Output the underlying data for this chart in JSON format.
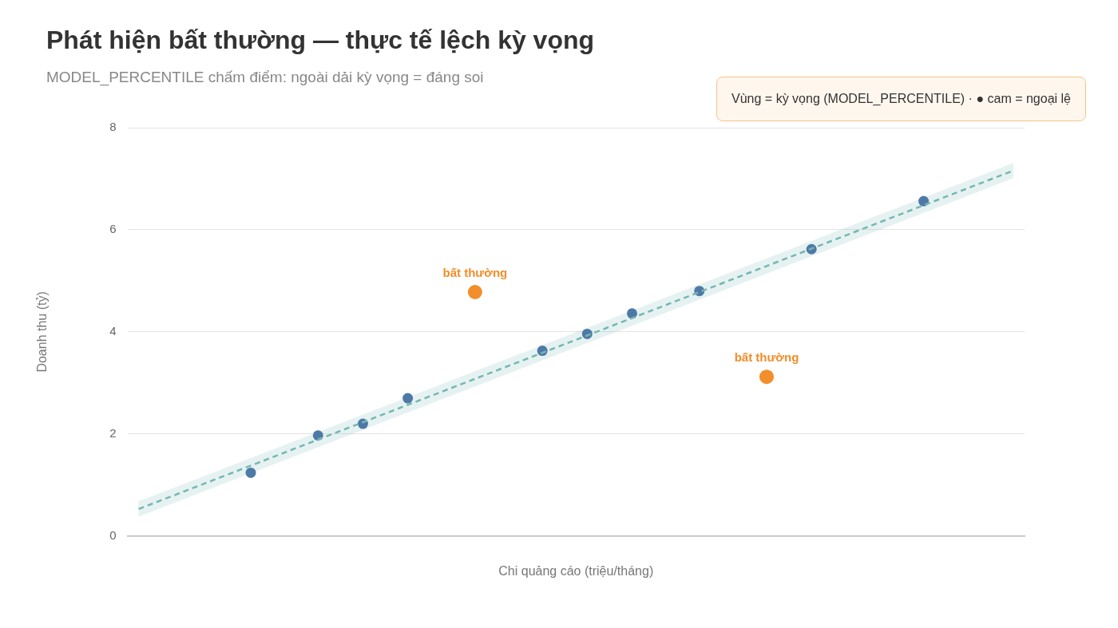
{
  "chart_data": {
    "type": "scatter",
    "title": "Phát hiện bất thường — thực tế lệch kỳ vọng",
    "subtitle": "MODEL_PERCENTILE chấm điểm: ngoài dải kỳ vọng = đáng soi",
    "xlabel": "Chi quảng cáo (triệu/tháng)",
    "ylabel": "Doanh thu (tỷ)",
    "categories": [
      null,
      null,
      null,
      null,
      null,
      null,
      null,
      null,
      null,
      null,
      null,
      null,
      null,
      null,
      null,
      null,
      null,
      null,
      null,
      null,
      null,
      null,
      null,
      null,
      null,
      null,
      null,
      null,
      null,
      null,
      null,
      null,
      null,
      null,
      null,
      null,
      null,
      null,
      null,
      null
    ],
    "ylim": [
      0,
      8
    ],
    "yticks": [
      0,
      2,
      4,
      6,
      8
    ],
    "tick_labels": "y",
    "grid": "y",
    "legend": false,
    "marker": "circle",
    "series": [
      {
        "type": "line",
        "color": "#76b7b2",
        "line_style": "dashed",
        "marker": "none",
        "values": [
          0.53,
          null,
          null,
          null,
          null,
          null,
          null,
          null,
          null,
          null,
          null,
          null,
          null,
          null,
          null,
          null,
          null,
          null,
          null,
          null,
          null,
          null,
          null,
          null,
          null,
          null,
          null,
          null,
          null,
          null,
          null,
          null,
          null,
          null,
          null,
          null,
          null,
          null,
          null,
          7.16
        ],
        "lower": [
          0.38,
          null,
          null,
          null,
          null,
          null,
          null,
          null,
          null,
          null,
          null,
          null,
          null,
          null,
          null,
          null,
          null,
          null,
          null,
          null,
          null,
          null,
          null,
          null,
          null,
          null,
          null,
          null,
          null,
          null,
          null,
          null,
          null,
          null,
          null,
          null,
          null,
          null,
          null,
          7.01
        ],
        "upper": [
          0.68,
          null,
          null,
          null,
          null,
          null,
          null,
          null,
          null,
          null,
          null,
          null,
          null,
          null,
          null,
          null,
          null,
          null,
          null,
          null,
          null,
          null,
          null,
          null,
          null,
          null,
          null,
          null,
          null,
          null,
          null,
          null,
          null,
          null,
          null,
          null,
          null,
          null,
          null,
          7.31
        ]
      },
      {
        "color": "#4e79a7",
        "values": [
          null,
          null,
          null,
          null,
          null,
          1.24,
          null,
          null,
          1.97,
          null,
          2.2,
          null,
          2.7,
          null,
          null,
          null,
          null,
          null,
          3.63,
          null,
          3.96,
          null,
          4.36,
          null,
          null,
          4.8,
          null,
          null,
          null,
          null,
          5.62,
          null,
          null,
          null,
          null,
          6.56,
          null,
          null,
          null,
          null
        ]
      },
      {
        "color": "#f28e2b",
        "values": [
          null,
          null,
          null,
          null,
          null,
          null,
          null,
          null,
          null,
          null,
          null,
          null,
          null,
          null,
          null,
          4.78,
          null,
          null,
          null,
          null,
          null,
          null,
          null,
          null,
          null,
          null,
          null,
          null,
          3.12,
          null,
          null,
          null,
          null,
          null,
          null,
          null,
          null,
          null,
          null,
          null
        ]
      }
    ],
    "annotations": [
      {
        "text": "bất thường",
        "y": 4.78
      },
      {
        "text": "bất thường",
        "y": 3.12
      },
      "Vùng = kỳ vọng (MODEL_PERCENTILE) · ● cam = ngoại lệ"
    ]
  }
}
